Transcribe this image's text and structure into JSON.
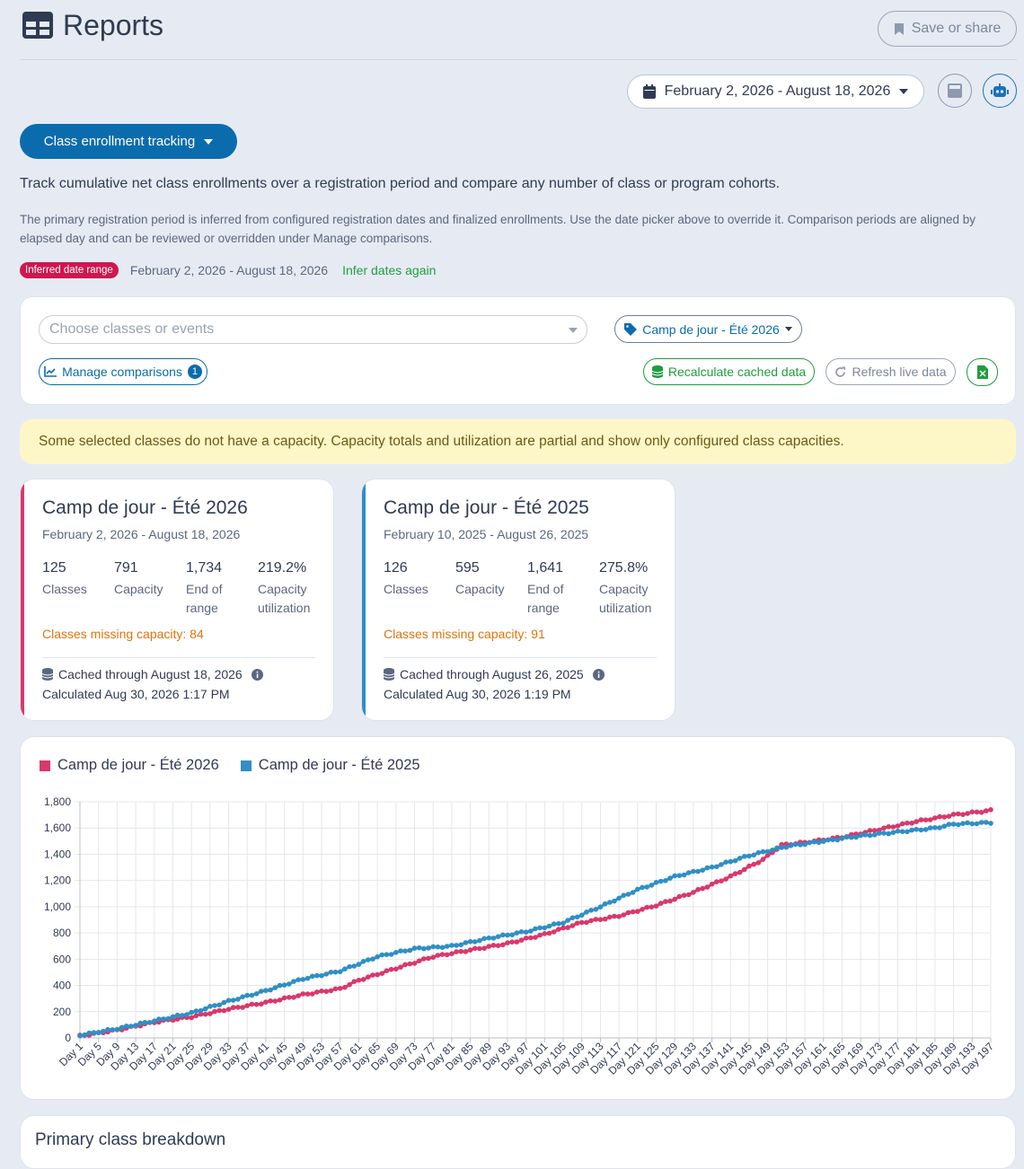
{
  "header": {
    "title": "Reports",
    "save_label": "Save or share",
    "logo_icon": "table-grid-icon"
  },
  "toolbar": {
    "date_range": "February 2, 2026 - August 18, 2026"
  },
  "report": {
    "selected": "Class enrollment tracking",
    "description": "Track cumulative net class enrollments over a registration period and compare any number of class or program cohorts.",
    "note": "The primary registration period is inferred from configured registration dates and finalized enrollments. Use the date picker above to override it. Comparison periods are aligned by elapsed day and can be reviewed or overridden under Manage comparisons.",
    "inferred_badge": "Inferred date range",
    "inferred_dates": "February 2, 2026 - August 18, 2026",
    "infer_again": "Infer dates again"
  },
  "filters": {
    "choose_placeholder": "Choose classes or events",
    "tag_label": "Camp de jour - Été 2026",
    "manage_label": "Manage comparisons",
    "manage_count": "1",
    "recalc_label": "Recalculate cached data",
    "refresh_label": "Refresh live data"
  },
  "warning": "Some selected classes do not have a capacity. Capacity totals and utilization are partial and show only configured class capacities.",
  "cohorts": [
    {
      "title": "Camp de jour - Été 2026",
      "dates": "February 2, 2026 - August 18, 2026",
      "color": "#d9386b",
      "stats": [
        {
          "value": "125",
          "label": "Classes"
        },
        {
          "value": "791",
          "label": "Capacity"
        },
        {
          "value": "1,734",
          "label": "End of range"
        },
        {
          "value": "219.2%",
          "label": "Capacity utilization"
        }
      ],
      "missing": "Classes missing capacity: 84",
      "cached": "Cached through August 18, 2026",
      "calculated": "Calculated Aug 30, 2026 1:17 PM"
    },
    {
      "title": "Camp de jour - Été 2025",
      "dates": "February 10, 2025 - August 26, 2025",
      "color": "#2f8fc6",
      "stats": [
        {
          "value": "126",
          "label": "Classes"
        },
        {
          "value": "595",
          "label": "Capacity"
        },
        {
          "value": "1,641",
          "label": "End of range"
        },
        {
          "value": "275.8%",
          "label": "Capacity utilization"
        }
      ],
      "missing": "Classes missing capacity: 91",
      "cached": "Cached through August 26, 2025",
      "calculated": "Calculated Aug 30, 2026 1:19 PM"
    }
  ],
  "chart_data": {
    "type": "line",
    "x_count": 197,
    "x_label_prefix": "Day ",
    "x_tick_step": 4,
    "ylim": [
      0,
      1800
    ],
    "y_ticks": [
      "0",
      "200",
      "400",
      "600",
      "800",
      "1,000",
      "1,200",
      "1,400",
      "1,600",
      "1,800"
    ],
    "legend_position": "top-left",
    "grid": true,
    "series": [
      {
        "name": "Camp de jour - Été 2026",
        "color": "#d9386b",
        "anchors": [
          [
            1,
            15
          ],
          [
            9,
            60
          ],
          [
            17,
            120
          ],
          [
            25,
            160
          ],
          [
            33,
            220
          ],
          [
            41,
            270
          ],
          [
            49,
            330
          ],
          [
            57,
            375
          ],
          [
            61,
            440
          ],
          [
            69,
            530
          ],
          [
            77,
            620
          ],
          [
            85,
            670
          ],
          [
            93,
            720
          ],
          [
            101,
            790
          ],
          [
            109,
            880
          ],
          [
            117,
            930
          ],
          [
            125,
            1010
          ],
          [
            133,
            1110
          ],
          [
            141,
            1230
          ],
          [
            148,
            1360
          ],
          [
            152,
            1470
          ],
          [
            157,
            1490
          ],
          [
            165,
            1530
          ],
          [
            173,
            1590
          ],
          [
            181,
            1650
          ],
          [
            189,
            1700
          ],
          [
            197,
            1734
          ]
        ]
      },
      {
        "name": "Camp de jour - Été 2025",
        "color": "#2f8fc6",
        "anchors": [
          [
            1,
            20
          ],
          [
            9,
            70
          ],
          [
            17,
            130
          ],
          [
            25,
            190
          ],
          [
            33,
            280
          ],
          [
            41,
            360
          ],
          [
            49,
            450
          ],
          [
            57,
            510
          ],
          [
            65,
            620
          ],
          [
            73,
            680
          ],
          [
            81,
            700
          ],
          [
            89,
            760
          ],
          [
            97,
            810
          ],
          [
            105,
            880
          ],
          [
            113,
            1000
          ],
          [
            121,
            1130
          ],
          [
            129,
            1230
          ],
          [
            137,
            1300
          ],
          [
            145,
            1390
          ],
          [
            153,
            1460
          ],
          [
            161,
            1500
          ],
          [
            169,
            1540
          ],
          [
            177,
            1570
          ],
          [
            185,
            1600
          ],
          [
            189,
            1630
          ],
          [
            197,
            1641
          ]
        ]
      }
    ]
  },
  "breakdown": {
    "title": "Primary class breakdown"
  }
}
